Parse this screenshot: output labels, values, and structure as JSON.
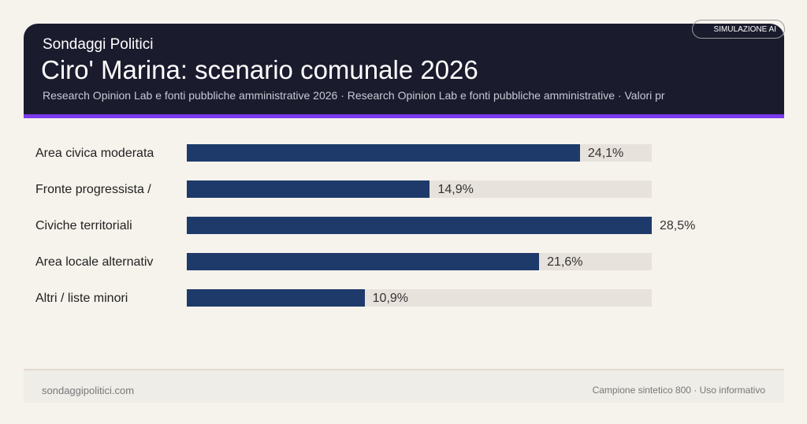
{
  "header": {
    "brand": "Sondaggi Politici",
    "title": "Ciro' Marina: scenario comunale 2026",
    "subtitle": "Research Opinion Lab e fonti pubbliche amministrative 2026 · Research Opinion Lab e fonti pubbliche amministrative · Valori pr",
    "badge": "SIMULAZIONE AI"
  },
  "colors": {
    "bar": "#1e3a6b",
    "track": "#e8e2dc",
    "header": "#1b1b2e",
    "accent": "#7c3aed"
  },
  "chart_data": {
    "type": "bar",
    "orientation": "horizontal",
    "categories": [
      "Area civica moderata",
      "Fronte progressista /",
      "Civiche territoriali",
      "Area locale alternativ",
      "Altri / liste minori"
    ],
    "values": [
      24.1,
      14.9,
      28.5,
      21.6,
      10.9
    ],
    "value_labels": [
      "24,1%",
      "14,9%",
      "28,5%",
      "21,6%",
      "10,9%"
    ],
    "xlim": [
      0,
      28.5
    ]
  },
  "footer": {
    "left": "sondaggipolitici.com",
    "right": "Campione sintetico 800 · Uso informativo"
  }
}
